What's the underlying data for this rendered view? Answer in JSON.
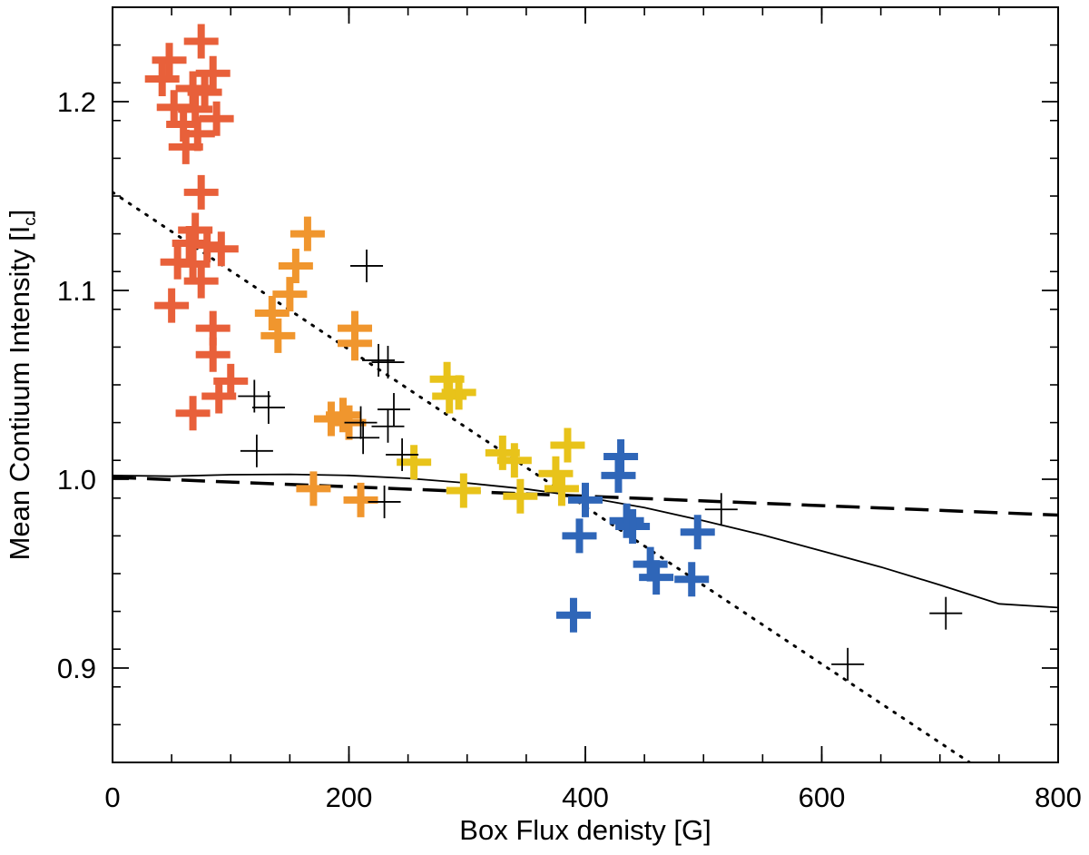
{
  "chart_data": {
    "type": "scatter",
    "title": "",
    "xlabel": "Box Flux denisty [G]",
    "ylabel_main": "Mean Contiuum Intensity [I",
    "ylabel_sub": "c",
    "ylabel_close": "]",
    "xlim": [
      0,
      800
    ],
    "ylim": [
      0.85,
      1.25
    ],
    "xticks": [
      0,
      200,
      400,
      600,
      800
    ],
    "xtick_labels": [
      "0",
      "200",
      "400",
      "600",
      "800"
    ],
    "yticks": [
      0.9,
      1.0,
      1.1,
      1.2
    ],
    "ytick_labels": [
      "0.9",
      "1.0",
      "1.1",
      "1.2"
    ],
    "x_minor_step": 50,
    "y_minor_step": 0.02,
    "grid": false,
    "series": [
      {
        "name": "red",
        "color": "#e8603a",
        "marker": "bold-plus",
        "points": [
          [
            75,
            1.232
          ],
          [
            48,
            1.222
          ],
          [
            85,
            1.215
          ],
          [
            42,
            1.212
          ],
          [
            68,
            1.207
          ],
          [
            78,
            1.205
          ],
          [
            52,
            1.197
          ],
          [
            70,
            1.196
          ],
          [
            60,
            1.188
          ],
          [
            88,
            1.191
          ],
          [
            72,
            1.183
          ],
          [
            62,
            1.176
          ],
          [
            75,
            1.152
          ],
          [
            70,
            1.132
          ],
          [
            65,
            1.125
          ],
          [
            80,
            1.124
          ],
          [
            92,
            1.122
          ],
          [
            55,
            1.115
          ],
          [
            68,
            1.114
          ],
          [
            75,
            1.105
          ],
          [
            50,
            1.092
          ],
          [
            85,
            1.08
          ],
          [
            85,
            1.066
          ],
          [
            100,
            1.052
          ],
          [
            90,
            1.044
          ],
          [
            68,
            1.035
          ]
        ]
      },
      {
        "name": "orange",
        "color": "#f0962e",
        "marker": "bold-plus",
        "points": [
          [
            165,
            1.13
          ],
          [
            155,
            1.113
          ],
          [
            150,
            1.098
          ],
          [
            135,
            1.088
          ],
          [
            140,
            1.076
          ],
          [
            205,
            1.08
          ],
          [
            205,
            1.072
          ],
          [
            195,
            1.034
          ],
          [
            200,
            1.03
          ],
          [
            185,
            1.032
          ],
          [
            170,
            0.995
          ],
          [
            210,
            0.989
          ]
        ]
      },
      {
        "name": "yellow",
        "color": "#e8c31a",
        "marker": "bold-plus",
        "points": [
          [
            283,
            1.053
          ],
          [
            285,
            1.044
          ],
          [
            293,
            1.046
          ],
          [
            255,
            1.009
          ],
          [
            297,
            0.994
          ],
          [
            330,
            1.014
          ],
          [
            340,
            1.01
          ],
          [
            345,
            0.991
          ],
          [
            385,
            1.018
          ],
          [
            375,
            1.003
          ],
          [
            380,
            0.995
          ]
        ]
      },
      {
        "name": "blue",
        "color": "#2f66b8",
        "marker": "bold-plus",
        "points": [
          [
            430,
            1.012
          ],
          [
            428,
            1.002
          ],
          [
            400,
            0.989
          ],
          [
            395,
            0.97
          ],
          [
            435,
            0.978
          ],
          [
            440,
            0.975
          ],
          [
            455,
            0.955
          ],
          [
            460,
            0.948
          ],
          [
            495,
            0.972
          ],
          [
            490,
            0.947
          ],
          [
            390,
            0.928
          ]
        ]
      },
      {
        "name": "black",
        "color": "#000000",
        "marker": "thin-plus",
        "points": [
          [
            120,
            1.044
          ],
          [
            132,
            1.038
          ],
          [
            122,
            1.015
          ],
          [
            215,
            1.113
          ],
          [
            225,
            1.063
          ],
          [
            233,
            1.062
          ],
          [
            238,
            1.037
          ],
          [
            233,
            1.028
          ],
          [
            210,
            1.03
          ],
          [
            212,
            1.022
          ],
          [
            245,
            1.013
          ],
          [
            230,
            0.988
          ],
          [
            515,
            0.984
          ],
          [
            622,
            0.902
          ],
          [
            705,
            0.929
          ]
        ]
      }
    ],
    "lines": [
      {
        "name": "dotted-fit",
        "style": "dotted",
        "points": [
          [
            0,
            1.152
          ],
          [
            730,
            0.848
          ]
        ]
      },
      {
        "name": "dashed-fit",
        "style": "dashed",
        "points": [
          [
            0,
            1.001
          ],
          [
            800,
            0.981
          ]
        ]
      },
      {
        "name": "solid-fit",
        "style": "solid",
        "points": [
          [
            0,
            1.002
          ],
          [
            50,
            1.0016
          ],
          [
            100,
            1.0024
          ],
          [
            150,
            1.0026
          ],
          [
            200,
            1.002
          ],
          [
            250,
            1.0005
          ],
          [
            300,
            0.998
          ],
          [
            350,
            0.9948
          ],
          [
            400,
            0.9905
          ],
          [
            450,
            0.985
          ],
          [
            500,
            0.978
          ],
          [
            550,
            0.9705
          ],
          [
            600,
            0.962
          ],
          [
            650,
            0.9535
          ],
          [
            700,
            0.944
          ],
          [
            750,
            0.934
          ],
          [
            800,
            0.932
          ]
        ]
      }
    ]
  }
}
